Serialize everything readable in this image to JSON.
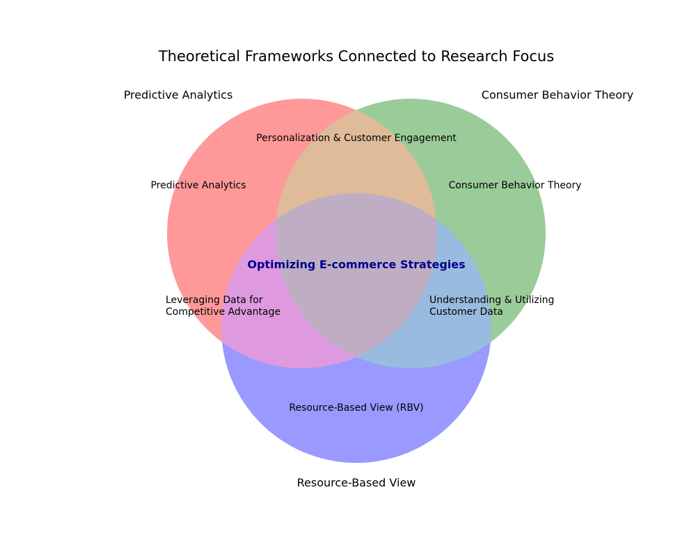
{
  "title": "Theoretical Frameworks Connected to Research Focus",
  "sets": [
    {
      "name": "Predictive Analytics",
      "color": "#ff9999"
    },
    {
      "name": "Consumer Behavior Theory",
      "color": "#99cc99"
    },
    {
      "name": "Resource-Based View",
      "color": "#9999ff"
    }
  ],
  "regions": {
    "a_only": "Predictive Analytics",
    "b_only": "Consumer Behavior Theory",
    "c_only": "Resource-Based View (RBV)",
    "ab": "Personalization & Customer Engagement",
    "ac_line1": "Leveraging Data for",
    "ac_line2": "Competitive Advantage",
    "bc_line1": "Understanding & Utilizing",
    "bc_line2": "Customer Data",
    "abc": "Optimizing E-commerce Strategies"
  },
  "region_colors": {
    "ab": "#e0bb99",
    "ac": "#df99df",
    "bc": "#99bbdf",
    "abc": "#bfaec3",
    "center_text": "#00008b"
  }
}
